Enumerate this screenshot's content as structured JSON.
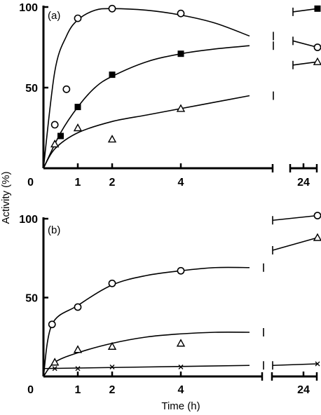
{
  "chart_data": [
    {
      "panel_label": "(a)",
      "type": "line",
      "ylim": [
        0,
        100
      ],
      "yticks": [
        "100",
        "50",
        "0"
      ],
      "xticks": [
        "1",
        "2",
        "4",
        "24"
      ],
      "series": [
        {
          "marker": "open-circle",
          "points": [
            [
              0,
              0
            ],
            [
              0.33,
              27
            ],
            [
              0.67,
              49
            ],
            [
              1,
              93
            ],
            [
              2,
              99
            ],
            [
              4,
              96
            ]
          ],
          "fit": [
            [
              0,
              0
            ],
            [
              0.33,
              60
            ],
            [
              0.67,
              82
            ],
            [
              1,
              92
            ],
            [
              1.5,
              98
            ],
            [
              2,
              99
            ],
            [
              3,
              98
            ],
            [
              4,
              95
            ],
            [
              5,
              90
            ],
            [
              6,
              82
            ]
          ],
          "end_cap": 82,
          "point_24h": 75,
          "fit_24h": 79
        },
        {
          "marker": "filled-square",
          "points": [
            [
              0,
              0
            ],
            [
              0.5,
              20
            ],
            [
              1,
              38
            ],
            [
              2,
              58
            ],
            [
              4,
              71
            ]
          ],
          "fit": [
            [
              0,
              0
            ],
            [
              0.5,
              22
            ],
            [
              1,
              38
            ],
            [
              1.5,
              50
            ],
            [
              2,
              57
            ],
            [
              3,
              66
            ],
            [
              4,
              71
            ],
            [
              5,
              74
            ],
            [
              6,
              76
            ]
          ],
          "end_cap": 76,
          "point_24h": 99,
          "fit_24h": 97
        },
        {
          "marker": "open-triangle",
          "points": [
            [
              0,
              0
            ],
            [
              0.33,
              15
            ],
            [
              1,
              25
            ],
            [
              2,
              18
            ],
            [
              4,
              37
            ]
          ],
          "fit": [
            [
              0,
              0
            ],
            [
              0.33,
              12
            ],
            [
              1,
              22
            ],
            [
              2,
              29
            ],
            [
              3,
              33
            ],
            [
              4,
              37
            ],
            [
              5,
              41
            ],
            [
              6,
              45
            ]
          ],
          "end_cap": 45,
          "point_24h": 66,
          "fit_24h": 64
        }
      ]
    },
    {
      "panel_label": "(b)",
      "type": "line",
      "ylim": [
        0,
        100
      ],
      "yticks": [
        "100",
        "50",
        "0"
      ],
      "xticks": [
        "1",
        "2",
        "4",
        "24"
      ],
      "series": [
        {
          "marker": "open-circle",
          "points": [
            [
              0,
              0
            ],
            [
              0.25,
              33
            ],
            [
              1,
              44
            ],
            [
              2,
              59
            ],
            [
              4,
              67
            ]
          ],
          "fit": [
            [
              0,
              0
            ],
            [
              0.25,
              33
            ],
            [
              1,
              45
            ],
            [
              2,
              58
            ],
            [
              3,
              64
            ],
            [
              4,
              67
            ],
            [
              5,
              69
            ],
            [
              6,
              69
            ]
          ],
          "end_cap": 69,
          "point_24h": 102,
          "fit_24h": 99
        },
        {
          "marker": "open-triangle",
          "points": [
            [
              0,
              0
            ],
            [
              0.33,
              9
            ],
            [
              1,
              17
            ],
            [
              2,
              19
            ],
            [
              4,
              21
            ]
          ],
          "fit": [
            [
              0,
              0
            ],
            [
              0.33,
              9
            ],
            [
              1,
              15
            ],
            [
              2,
              21
            ],
            [
              3,
              25
            ],
            [
              4,
              27
            ],
            [
              5,
              28
            ],
            [
              6,
              28
            ]
          ],
          "end_cap": 28,
          "point_24h": 88,
          "fit_24h": 80
        },
        {
          "marker": "cross",
          "points": [
            [
              0.33,
              5
            ],
            [
              1,
              5
            ],
            [
              2,
              6
            ],
            [
              4,
              6
            ]
          ],
          "fit": [
            [
              0,
              5
            ],
            [
              6,
              7
            ]
          ],
          "end_cap": 7,
          "point_24h": 8,
          "fit_24h": 7
        }
      ]
    }
  ],
  "labels": {
    "ylabel": "Activity (%)",
    "xlabel": "Time (h)"
  },
  "style": {
    "ink": "#000000",
    "background": "#ffffff"
  }
}
